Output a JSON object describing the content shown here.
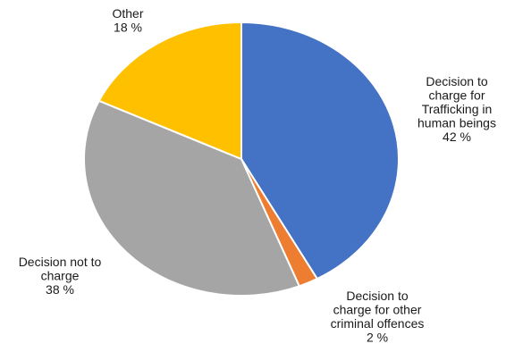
{
  "chart_data": {
    "type": "pie",
    "title": "",
    "slices": [
      {
        "lines": [
          "Decision to",
          "charge for",
          "Trafficking in",
          "human beings"
        ],
        "pct_label": "42 %",
        "value": 42,
        "color": "#4472c4"
      },
      {
        "lines": [
          "Decision to",
          "charge for other",
          "criminal offences"
        ],
        "pct_label": "2 %",
        "value": 2,
        "color": "#ed7d31"
      },
      {
        "lines": [
          "Decision not to",
          "charge"
        ],
        "pct_label": "38 %",
        "value": 38,
        "color": "#a5a5a5"
      },
      {
        "lines": [
          "Other"
        ],
        "pct_label": "18 %",
        "value": 18,
        "color": "#ffc000"
      }
    ]
  }
}
